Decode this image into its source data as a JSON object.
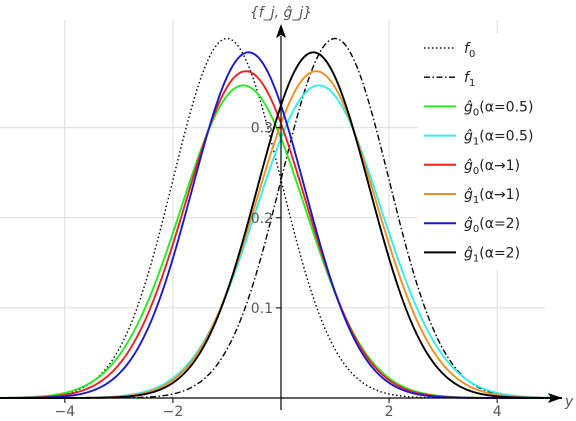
{
  "chart_data": {
    "type": "line",
    "title": "",
    "ylabel": "{f_j, ĝ_j}",
    "xlabel": "y",
    "xlim": [
      -5.2,
      5.2
    ],
    "ylim": [
      0,
      0.405
    ],
    "x_ticks": [
      -4,
      -2,
      2,
      4
    ],
    "x_tick_labels": [
      "−4",
      "−2",
      "2",
      "4"
    ],
    "y_ticks": [
      0.1,
      0.2,
      0.3
    ],
    "y_tick_labels": [
      "0.1",
      "0.2",
      "0.3"
    ],
    "grid": true,
    "legend_position": "top-right",
    "series": [
      {
        "name": "f0",
        "label_main": "f",
        "label_sub": "0",
        "label_suffix": "",
        "mean": -1.0,
        "sd": 1.0,
        "color": "#000000",
        "dash": "dotted"
      },
      {
        "name": "f1",
        "label_main": "f",
        "label_sub": "1",
        "label_suffix": "",
        "mean": 1.0,
        "sd": 1.0,
        "color": "#000000",
        "dash": "dashdot"
      },
      {
        "name": "ĝ0(α=0.5)",
        "label_main": "ĝ",
        "label_sub": "0",
        "label_suffix": "(α=0.5)",
        "mean": -0.7,
        "sd": 1.15,
        "color": "#22ee22",
        "dash": "solid"
      },
      {
        "name": "ĝ1(α=0.5)",
        "label_main": "ĝ",
        "label_sub": "1",
        "label_suffix": "(α=0.5)",
        "mean": 0.7,
        "sd": 1.15,
        "color": "#33eeee",
        "dash": "solid"
      },
      {
        "name": "ĝ0(α→1)",
        "label_main": "ĝ",
        "label_sub": "0",
        "label_suffix": "(α→1)",
        "mean": -0.65,
        "sd": 1.1,
        "color": "#ee2222",
        "dash": "solid"
      },
      {
        "name": "ĝ1(α→1)",
        "label_main": "ĝ",
        "label_sub": "1",
        "label_suffix": "(α→1)",
        "mean": 0.65,
        "sd": 1.1,
        "color": "#f09020",
        "dash": "solid"
      },
      {
        "name": "ĝ0(α=2)",
        "label_main": "ĝ",
        "label_sub": "0",
        "label_suffix": "(α=2)",
        "mean": -0.6,
        "sd": 1.04,
        "color": "#1a1acc",
        "dash": "solid"
      },
      {
        "name": "ĝ1(α=2)",
        "label_main": "ĝ",
        "label_sub": "1",
        "label_suffix": "(α=2)",
        "mean": 0.6,
        "sd": 1.04,
        "color": "#000000",
        "dash": "solid"
      }
    ]
  }
}
